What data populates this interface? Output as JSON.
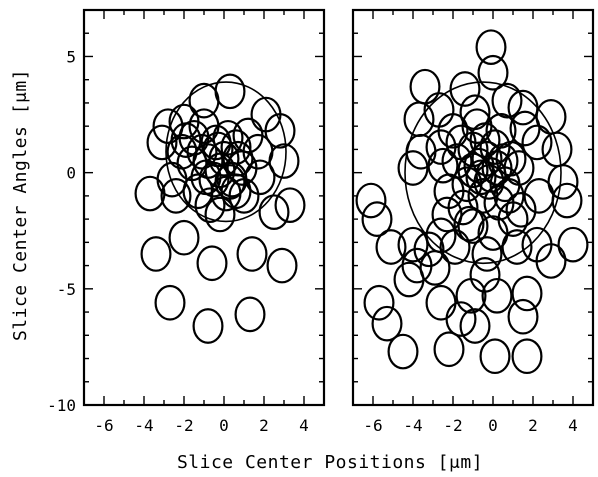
{
  "chart_data": {
    "type": "scatter",
    "xlabel": "Slice Center Positions [μm]",
    "ylabel": "Slice Center Angles [μm]",
    "panels": [
      {
        "xlim": [
          -7,
          5
        ],
        "ylim": [
          -10,
          7
        ],
        "x_tick_labels": [
          "-6",
          "-4",
          "-2",
          "0",
          "2",
          "4"
        ],
        "y_tick_labels": [
          "5",
          "0",
          "-5",
          "-10"
        ],
        "marker_radius": 0.72,
        "large_ring": {
          "x": 0.1,
          "y": 0.9,
          "r": 3.0
        },
        "points": [
          [
            -1.0,
            3.1
          ],
          [
            0.3,
            3.5
          ],
          [
            2.1,
            2.5
          ],
          [
            -2.0,
            2.2
          ],
          [
            -3.1,
            1.3
          ],
          [
            -2.6,
            -0.3
          ],
          [
            -3.7,
            -0.9
          ],
          [
            -2.4,
            -1.0
          ],
          [
            -1.5,
            1.5
          ],
          [
            -1.0,
            2.0
          ],
          [
            -0.4,
            1.3
          ],
          [
            0.6,
            1.1
          ],
          [
            1.2,
            1.6
          ],
          [
            2.8,
            1.8
          ],
          [
            3.0,
            0.5
          ],
          [
            1.8,
            -0.2
          ],
          [
            3.3,
            -1.4
          ],
          [
            2.5,
            -1.7
          ],
          [
            1.0,
            -1.0
          ],
          [
            0.1,
            -0.9
          ],
          [
            -0.9,
            -0.2
          ],
          [
            -1.6,
            0.4
          ],
          [
            -2.1,
            0.9
          ],
          [
            -0.8,
            0.5
          ],
          [
            -0.2,
            0.1
          ],
          [
            0.4,
            -0.3
          ],
          [
            0.7,
            0.6
          ],
          [
            -1.3,
            -0.8
          ],
          [
            -1.9,
            1.4
          ],
          [
            0.2,
            1.5
          ],
          [
            -0.5,
            -0.3
          ],
          [
            0.9,
            0.2
          ],
          [
            0.0,
            0.6
          ],
          [
            -1.1,
            0.9
          ],
          [
            0.3,
            -0.4
          ],
          [
            -0.3,
            1.0
          ],
          [
            0.6,
            -0.8
          ],
          [
            -0.7,
            -1.4
          ],
          [
            -2.0,
            -2.8
          ],
          [
            -3.4,
            -3.5
          ],
          [
            -0.6,
            -3.9
          ],
          [
            1.4,
            -3.5
          ],
          [
            2.9,
            -4.0
          ],
          [
            -2.7,
            -5.6
          ],
          [
            -0.8,
            -6.6
          ],
          [
            1.3,
            -6.1
          ],
          [
            -0.2,
            -1.8
          ],
          [
            1.7,
            0.9
          ],
          [
            -2.8,
            2.0
          ]
        ]
      },
      {
        "xlim": [
          -7,
          5
        ],
        "ylim": [
          -10,
          7
        ],
        "x_tick_labels": [
          "-6",
          "-4",
          "-2",
          "0",
          "2",
          "4"
        ],
        "y_tick_labels": [],
        "marker_radius": 0.72,
        "large_ring": {
          "x": -0.5,
          "y": 0.0,
          "r": 3.9
        },
        "points": [
          [
            -0.1,
            5.4
          ],
          [
            0.0,
            4.3
          ],
          [
            -1.4,
            3.6
          ],
          [
            -3.4,
            3.7
          ],
          [
            -2.7,
            2.7
          ],
          [
            -3.7,
            2.3
          ],
          [
            0.7,
            3.1
          ],
          [
            1.5,
            2.8
          ],
          [
            2.9,
            2.4
          ],
          [
            -3.6,
            0.9
          ],
          [
            -4.0,
            0.2
          ],
          [
            -2.6,
            1.1
          ],
          [
            2.2,
            1.3
          ],
          [
            3.2,
            1.0
          ],
          [
            3.5,
            -0.4
          ],
          [
            3.7,
            -1.2
          ],
          [
            2.3,
            -1.0
          ],
          [
            1.4,
            -1.6
          ],
          [
            -6.1,
            -1.2
          ],
          [
            -5.8,
            -2.0
          ],
          [
            -5.1,
            -3.2
          ],
          [
            -4.0,
            -3.1
          ],
          [
            -3.2,
            -3.3
          ],
          [
            -2.6,
            -2.7
          ],
          [
            -3.8,
            -4.0
          ],
          [
            -4.2,
            -4.6
          ],
          [
            -2.9,
            -4.1
          ],
          [
            -1.9,
            -3.2
          ],
          [
            -1.0,
            -2.3
          ],
          [
            0.0,
            -2.6
          ],
          [
            -0.3,
            -3.5
          ],
          [
            -0.4,
            -4.4
          ],
          [
            1.2,
            -3.2
          ],
          [
            2.2,
            -3.1
          ],
          [
            2.9,
            -3.8
          ],
          [
            4.0,
            -3.1
          ],
          [
            -5.7,
            -5.6
          ],
          [
            -5.3,
            -6.5
          ],
          [
            -4.5,
            -7.7
          ],
          [
            -2.6,
            -5.6
          ],
          [
            -1.1,
            -5.3
          ],
          [
            -1.6,
            -6.3
          ],
          [
            0.2,
            -5.3
          ],
          [
            1.7,
            -5.2
          ],
          [
            1.5,
            -6.2
          ],
          [
            -2.2,
            -7.6
          ],
          [
            -0.9,
            -6.6
          ],
          [
            0.1,
            -7.9
          ],
          [
            1.7,
            -7.9
          ],
          [
            -1.3,
            -0.5
          ],
          [
            -0.7,
            0.3
          ],
          [
            -0.2,
            -0.4
          ],
          [
            0.2,
            0.2
          ],
          [
            -1.8,
            0.5
          ],
          [
            -1.0,
            1.0
          ],
          [
            0.6,
            -0.5
          ],
          [
            -0.5,
            -1.0
          ],
          [
            0.1,
            1.1
          ],
          [
            -1.5,
            -1.5
          ],
          [
            0.9,
            0.6
          ],
          [
            -2.2,
            -0.8
          ],
          [
            1.0,
            -2.0
          ],
          [
            -0.8,
            2.0
          ],
          [
            0.4,
            1.8
          ],
          [
            -2.0,
            1.8
          ],
          [
            -1.2,
            -2.2
          ],
          [
            0.3,
            -1.3
          ],
          [
            1.3,
            0.2
          ],
          [
            -0.3,
            0.6
          ],
          [
            -0.6,
            -0.2
          ],
          [
            -0.1,
            -0.1
          ],
          [
            -1.0,
            0.1
          ],
          [
            0.5,
            0.5
          ],
          [
            -0.4,
            1.4
          ],
          [
            -1.6,
            1.3
          ],
          [
            -2.5,
            0.3
          ],
          [
            1.6,
            1.9
          ],
          [
            -0.9,
            2.6
          ],
          [
            -2.3,
            -1.8
          ],
          [
            0.8,
            -1.0
          ]
        ]
      }
    ]
  }
}
